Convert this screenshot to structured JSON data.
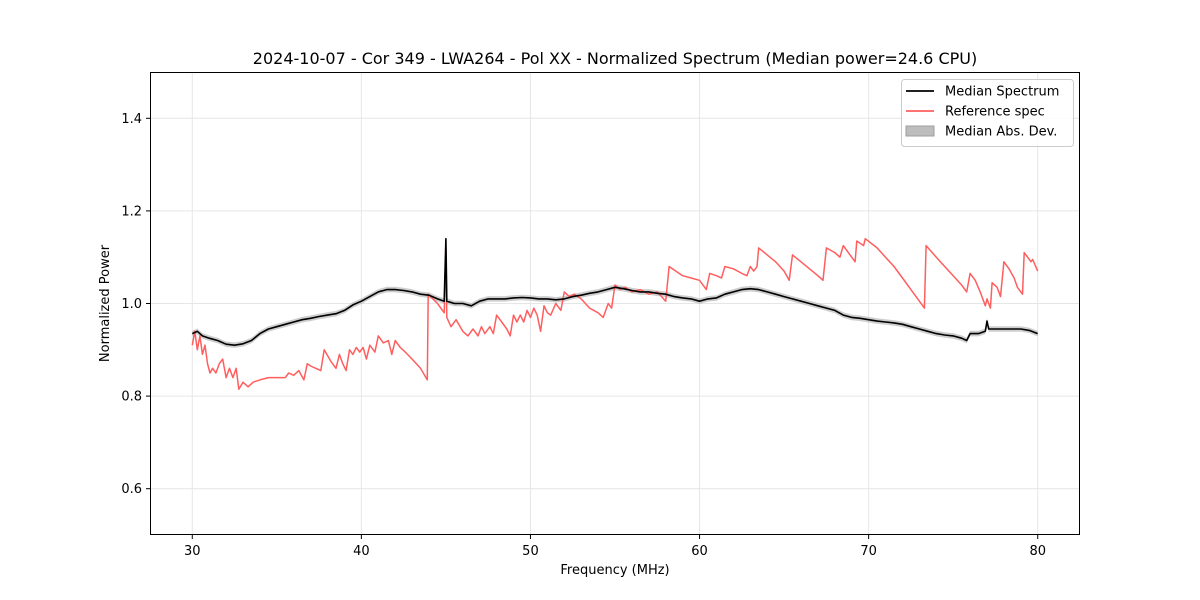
{
  "chart_data": {
    "type": "line",
    "title": "2024-10-07 - Cor 349 - LWA264 - Pol XX - Normalized Spectrum (Median power=24.6 CPU)",
    "xlabel": "Frequency (MHz)",
    "ylabel": "Normalized Power",
    "xlim": [
      27.5,
      82.5
    ],
    "ylim": [
      0.5,
      1.5
    ],
    "xticks": [
      30,
      40,
      50,
      60,
      70,
      80
    ],
    "yticks": [
      0.6,
      0.8,
      1.0,
      1.2,
      1.4
    ],
    "xtick_labels": [
      "30",
      "40",
      "50",
      "60",
      "70",
      "80"
    ],
    "ytick_labels": [
      "0.6",
      "0.8",
      "1.0",
      "1.2",
      "1.4"
    ],
    "grid": true,
    "legend_position": "top-right",
    "series": [
      {
        "name": "Median Spectrum",
        "color": "#000000",
        "points": [
          [
            30.0,
            0.935
          ],
          [
            30.3,
            0.94
          ],
          [
            30.6,
            0.93
          ],
          [
            31.0,
            0.925
          ],
          [
            31.5,
            0.92
          ],
          [
            32.0,
            0.912
          ],
          [
            32.5,
            0.91
          ],
          [
            33.0,
            0.913
          ],
          [
            33.5,
            0.92
          ],
          [
            34.0,
            0.935
          ],
          [
            34.5,
            0.945
          ],
          [
            35.0,
            0.95
          ],
          [
            35.5,
            0.955
          ],
          [
            36.0,
            0.96
          ],
          [
            36.5,
            0.965
          ],
          [
            37.0,
            0.968
          ],
          [
            37.5,
            0.972
          ],
          [
            38.0,
            0.975
          ],
          [
            38.5,
            0.978
          ],
          [
            39.0,
            0.985
          ],
          [
            39.5,
            0.997
          ],
          [
            40.0,
            1.005
          ],
          [
            40.5,
            1.015
          ],
          [
            41.0,
            1.025
          ],
          [
            41.5,
            1.03
          ],
          [
            42.0,
            1.03
          ],
          [
            42.5,
            1.028
          ],
          [
            43.0,
            1.025
          ],
          [
            43.5,
            1.02
          ],
          [
            44.0,
            1.018
          ],
          [
            44.5,
            1.01
          ],
          [
            44.9,
            1.005
          ],
          [
            45.0,
            1.14
          ],
          [
            45.05,
            1.005
          ],
          [
            45.5,
            1.0
          ],
          [
            46.0,
            1.0
          ],
          [
            46.5,
            0.995
          ],
          [
            47.0,
            1.005
          ],
          [
            47.5,
            1.01
          ],
          [
            48.0,
            1.01
          ],
          [
            48.5,
            1.01
          ],
          [
            49.0,
            1.012
          ],
          [
            49.5,
            1.013
          ],
          [
            50.0,
            1.012
          ],
          [
            50.5,
            1.01
          ],
          [
            51.0,
            1.01
          ],
          [
            51.5,
            1.008
          ],
          [
            52.0,
            1.01
          ],
          [
            52.5,
            1.015
          ],
          [
            53.0,
            1.018
          ],
          [
            53.5,
            1.022
          ],
          [
            54.0,
            1.025
          ],
          [
            54.5,
            1.03
          ],
          [
            55.0,
            1.035
          ],
          [
            55.5,
            1.032
          ],
          [
            56.0,
            1.028
          ],
          [
            56.5,
            1.025
          ],
          [
            57.0,
            1.025
          ],
          [
            57.5,
            1.022
          ],
          [
            58.0,
            1.02
          ],
          [
            58.5,
            1.015
          ],
          [
            59.0,
            1.012
          ],
          [
            59.5,
            1.01
          ],
          [
            60.0,
            1.005
          ],
          [
            60.5,
            1.01
          ],
          [
            61.0,
            1.012
          ],
          [
            61.5,
            1.02
          ],
          [
            62.0,
            1.025
          ],
          [
            62.5,
            1.03
          ],
          [
            63.0,
            1.032
          ],
          [
            63.5,
            1.03
          ],
          [
            64.0,
            1.025
          ],
          [
            64.5,
            1.02
          ],
          [
            65.0,
            1.015
          ],
          [
            65.5,
            1.01
          ],
          [
            66.0,
            1.005
          ],
          [
            66.5,
            1.0
          ],
          [
            67.0,
            0.995
          ],
          [
            67.5,
            0.99
          ],
          [
            68.0,
            0.985
          ],
          [
            68.5,
            0.975
          ],
          [
            69.0,
            0.97
          ],
          [
            69.5,
            0.968
          ],
          [
            70.0,
            0.965
          ],
          [
            70.5,
            0.962
          ],
          [
            71.0,
            0.96
          ],
          [
            71.5,
            0.958
          ],
          [
            72.0,
            0.955
          ],
          [
            72.5,
            0.95
          ],
          [
            73.0,
            0.945
          ],
          [
            73.5,
            0.94
          ],
          [
            74.0,
            0.935
          ],
          [
            74.5,
            0.932
          ],
          [
            75.0,
            0.93
          ],
          [
            75.5,
            0.925
          ],
          [
            75.8,
            0.92
          ],
          [
            76.0,
            0.935
          ],
          [
            76.5,
            0.935
          ],
          [
            76.9,
            0.94
          ],
          [
            77.0,
            0.962
          ],
          [
            77.1,
            0.945
          ],
          [
            77.5,
            0.945
          ],
          [
            78.0,
            0.945
          ],
          [
            78.5,
            0.945
          ],
          [
            79.0,
            0.945
          ],
          [
            79.5,
            0.942
          ],
          [
            80.0,
            0.935
          ]
        ]
      },
      {
        "name": "Reference spec",
        "color": "#ff5e5e",
        "points": [
          [
            30.0,
            0.91
          ],
          [
            30.15,
            0.94
          ],
          [
            30.3,
            0.9
          ],
          [
            30.45,
            0.93
          ],
          [
            30.6,
            0.89
          ],
          [
            30.75,
            0.91
          ],
          [
            30.9,
            0.87
          ],
          [
            31.05,
            0.85
          ],
          [
            31.2,
            0.86
          ],
          [
            31.4,
            0.85
          ],
          [
            31.6,
            0.87
          ],
          [
            31.8,
            0.88
          ],
          [
            32.0,
            0.84
          ],
          [
            32.2,
            0.86
          ],
          [
            32.4,
            0.84
          ],
          [
            32.6,
            0.86
          ],
          [
            32.75,
            0.815
          ],
          [
            33.0,
            0.83
          ],
          [
            33.3,
            0.82
          ],
          [
            33.6,
            0.83
          ],
          [
            34.0,
            0.835
          ],
          [
            34.5,
            0.84
          ],
          [
            35.0,
            0.84
          ],
          [
            35.5,
            0.84
          ],
          [
            35.7,
            0.85
          ],
          [
            36.0,
            0.845
          ],
          [
            36.3,
            0.855
          ],
          [
            36.6,
            0.835
          ],
          [
            36.8,
            0.87
          ],
          [
            37.0,
            0.865
          ],
          [
            37.3,
            0.86
          ],
          [
            37.6,
            0.855
          ],
          [
            37.8,
            0.9
          ],
          [
            38.2,
            0.875
          ],
          [
            38.5,
            0.86
          ],
          [
            38.7,
            0.89
          ],
          [
            38.9,
            0.87
          ],
          [
            39.1,
            0.855
          ],
          [
            39.3,
            0.9
          ],
          [
            39.5,
            0.89
          ],
          [
            39.7,
            0.905
          ],
          [
            39.9,
            0.895
          ],
          [
            40.1,
            0.905
          ],
          [
            40.3,
            0.88
          ],
          [
            40.5,
            0.91
          ],
          [
            40.8,
            0.895
          ],
          [
            41.0,
            0.93
          ],
          [
            41.3,
            0.915
          ],
          [
            41.6,
            0.92
          ],
          [
            41.8,
            0.89
          ],
          [
            42.0,
            0.92
          ],
          [
            42.3,
            0.905
          ],
          [
            42.6,
            0.895
          ],
          [
            43.0,
            0.88
          ],
          [
            43.5,
            0.86
          ],
          [
            43.9,
            0.835
          ],
          [
            43.95,
            1.02
          ],
          [
            44.5,
            1.0
          ],
          [
            44.9,
            0.98
          ],
          [
            45.0,
            1.12
          ],
          [
            45.05,
            0.97
          ],
          [
            45.3,
            0.95
          ],
          [
            45.6,
            0.965
          ],
          [
            46.0,
            0.94
          ],
          [
            46.3,
            0.93
          ],
          [
            46.6,
            0.945
          ],
          [
            46.9,
            0.93
          ],
          [
            47.1,
            0.95
          ],
          [
            47.3,
            0.935
          ],
          [
            47.6,
            0.95
          ],
          [
            47.8,
            0.935
          ],
          [
            48.0,
            0.975
          ],
          [
            48.3,
            0.96
          ],
          [
            48.6,
            0.945
          ],
          [
            48.8,
            0.93
          ],
          [
            49.0,
            0.975
          ],
          [
            49.2,
            0.96
          ],
          [
            49.4,
            0.975
          ],
          [
            49.6,
            0.96
          ],
          [
            49.8,
            0.985
          ],
          [
            50.0,
            0.97
          ],
          [
            50.2,
            0.99
          ],
          [
            50.4,
            0.975
          ],
          [
            50.6,
            0.94
          ],
          [
            50.8,
            0.995
          ],
          [
            51.0,
            0.98
          ],
          [
            51.2,
            0.975
          ],
          [
            51.5,
            1.0
          ],
          [
            51.8,
            0.985
          ],
          [
            52.0,
            1.025
          ],
          [
            52.3,
            1.015
          ],
          [
            52.6,
            1.02
          ],
          [
            53.0,
            1.01
          ],
          [
            53.5,
            0.99
          ],
          [
            54.0,
            0.98
          ],
          [
            54.3,
            0.97
          ],
          [
            54.6,
            1.0
          ],
          [
            54.8,
            0.99
          ],
          [
            55.0,
            1.04
          ],
          [
            55.3,
            1.03
          ],
          [
            55.6,
            1.035
          ],
          [
            56.0,
            1.025
          ],
          [
            56.5,
            1.03
          ],
          [
            57.0,
            1.02
          ],
          [
            57.5,
            1.025
          ],
          [
            58.0,
            1.005
          ],
          [
            58.2,
            1.08
          ],
          [
            58.6,
            1.07
          ],
          [
            59.0,
            1.06
          ],
          [
            59.5,
            1.055
          ],
          [
            60.0,
            1.05
          ],
          [
            60.4,
            1.03
          ],
          [
            60.6,
            1.065
          ],
          [
            61.0,
            1.06
          ],
          [
            61.3,
            1.055
          ],
          [
            61.5,
            1.08
          ],
          [
            62.0,
            1.075
          ],
          [
            62.5,
            1.065
          ],
          [
            62.8,
            1.06
          ],
          [
            63.0,
            1.08
          ],
          [
            63.2,
            1.07
          ],
          [
            63.4,
            1.08
          ],
          [
            63.5,
            1.12
          ],
          [
            64.0,
            1.105
          ],
          [
            64.5,
            1.09
          ],
          [
            65.0,
            1.07
          ],
          [
            65.3,
            1.05
          ],
          [
            65.5,
            1.105
          ],
          [
            66.0,
            1.09
          ],
          [
            66.5,
            1.075
          ],
          [
            67.0,
            1.06
          ],
          [
            67.3,
            1.05
          ],
          [
            67.5,
            1.12
          ],
          [
            68.0,
            1.11
          ],
          [
            68.3,
            1.1
          ],
          [
            68.5,
            1.125
          ],
          [
            68.7,
            1.115
          ],
          [
            69.0,
            1.1
          ],
          [
            69.2,
            1.09
          ],
          [
            69.3,
            1.135
          ],
          [
            69.7,
            1.125
          ],
          [
            69.8,
            1.14
          ],
          [
            70.5,
            1.12
          ],
          [
            71.0,
            1.1
          ],
          [
            71.5,
            1.08
          ],
          [
            72.0,
            1.055
          ],
          [
            72.5,
            1.03
          ],
          [
            73.0,
            1.005
          ],
          [
            73.3,
            0.99
          ],
          [
            73.4,
            1.125
          ],
          [
            74.0,
            1.1
          ],
          [
            74.5,
            1.08
          ],
          [
            75.0,
            1.06
          ],
          [
            75.5,
            1.04
          ],
          [
            75.8,
            1.025
          ],
          [
            76.0,
            1.065
          ],
          [
            76.3,
            1.05
          ],
          [
            76.6,
            1.025
          ],
          [
            76.9,
            0.995
          ],
          [
            77.0,
            1.01
          ],
          [
            77.2,
            0.99
          ],
          [
            77.3,
            1.045
          ],
          [
            77.6,
            1.035
          ],
          [
            77.8,
            1.015
          ],
          [
            78.0,
            1.09
          ],
          [
            78.3,
            1.075
          ],
          [
            78.6,
            1.055
          ],
          [
            78.8,
            1.035
          ],
          [
            79.1,
            1.02
          ],
          [
            79.2,
            1.11
          ],
          [
            79.4,
            1.1
          ],
          [
            79.6,
            1.09
          ],
          [
            79.7,
            1.095
          ],
          [
            80.0,
            1.07
          ]
        ]
      }
    ],
    "band": {
      "name": "Median Abs. Dev.",
      "color": "#bdbdbd",
      "half_width": 0.006
    }
  }
}
